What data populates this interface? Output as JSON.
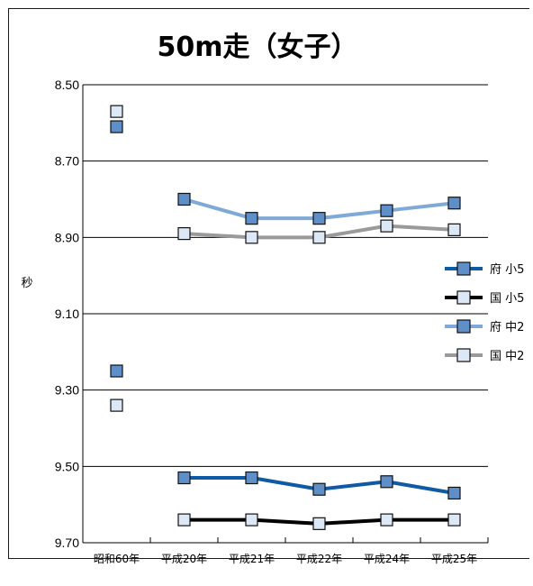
{
  "chart_data": {
    "type": "line",
    "title": "50m走（女子）",
    "ylabel": "秒",
    "ylim": [
      8.5,
      9.7
    ],
    "y_inverted": true,
    "yticks": [
      "8.50",
      "8.70",
      "8.90",
      "9.10",
      "9.30",
      "9.50",
      "9.70"
    ],
    "categories": [
      "昭和60年",
      "平成20年",
      "平成21年",
      "平成22年",
      "平成24年",
      "平成25年"
    ],
    "legend_position": "right",
    "series": [
      {
        "name": "府 小5",
        "line_color": "#0f5aa5",
        "marker_color": "#5f8fc8",
        "values": [
          9.25,
          9.53,
          9.53,
          9.56,
          9.54,
          9.57
        ]
      },
      {
        "name": "国 小5",
        "line_color": "#000000",
        "marker_color": "#dce8f6",
        "values": [
          9.34,
          9.64,
          9.64,
          9.65,
          9.64,
          9.64
        ]
      },
      {
        "name": "府 中2",
        "line_color": "#7fa9d6",
        "marker_color": "#5f8fc8",
        "values": [
          8.61,
          8.8,
          8.85,
          8.85,
          8.83,
          8.81
        ]
      },
      {
        "name": "国 中2",
        "line_color": "#9a9a9a",
        "marker_color": "#dce8f6",
        "values": [
          8.57,
          8.89,
          8.9,
          8.9,
          8.87,
          8.88
        ]
      }
    ]
  }
}
